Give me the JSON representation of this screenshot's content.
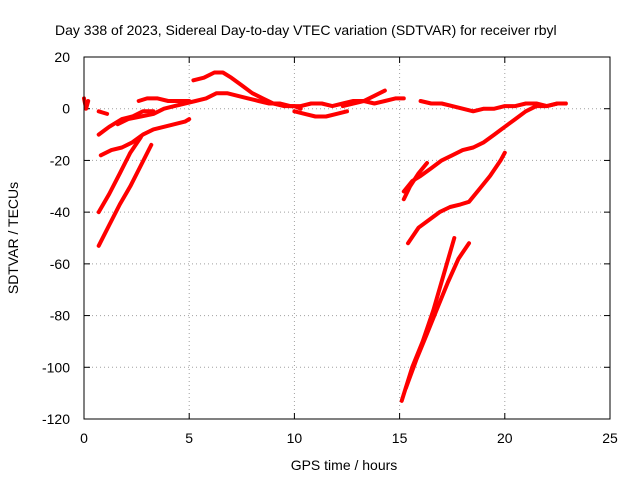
{
  "chart_data": {
    "type": "line",
    "title": "Day 338 of 2023, Sidereal Day-to-day VTEC variation (SDTVAR) for receiver rbyl",
    "xlabel": "GPS time / hours",
    "ylabel": "SDTVAR / TECUs",
    "xlim": [
      0,
      25
    ],
    "ylim": [
      -120,
      20
    ],
    "xticks": [
      0,
      5,
      10,
      15,
      20,
      25
    ],
    "yticks": [
      -120,
      -100,
      -80,
      -60,
      -40,
      -20,
      0,
      20
    ],
    "grid": true,
    "series_color": "#ff0000",
    "series": [
      {
        "x": [
          0.0,
          0.1,
          0.2
        ],
        "y": [
          4,
          0,
          3
        ]
      },
      {
        "x": [
          0.7,
          0.9,
          1.1
        ],
        "y": [
          -1,
          -1.5,
          -2
        ]
      },
      {
        "x": [
          0.7,
          1.2,
          1.8,
          2.3,
          2.8,
          3.3
        ],
        "y": [
          -10,
          -7,
          -4,
          -3,
          -1,
          -1
        ]
      },
      {
        "x": [
          1.6,
          2.1,
          2.7,
          3.3,
          3.8,
          4.3,
          4.8,
          5.3,
          5.8,
          6.3,
          6.8,
          7.3,
          7.8,
          8.3,
          8.8,
          9.3,
          9.8,
          10.3,
          10.8,
          11.3,
          11.8,
          12.3,
          12.8,
          13.3,
          13.8,
          14.3,
          14.8,
          15.2
        ],
        "y": [
          -6,
          -4,
          -3,
          -2,
          0,
          1,
          2,
          3,
          4,
          6,
          6,
          5,
          4,
          3,
          2,
          2,
          1,
          1,
          2,
          2,
          1,
          2,
          3,
          3,
          2,
          3,
          4,
          4
        ]
      },
      {
        "x": [
          0.8,
          1.3,
          1.8,
          2.3,
          2.8,
          3.3,
          3.8,
          4.3,
          4.8,
          5.0
        ],
        "y": [
          -18,
          -16,
          -15,
          -13,
          -10,
          -8,
          -7,
          -6,
          -5,
          -4
        ]
      },
      {
        "x": [
          2.6,
          3.0,
          3.5,
          4.0,
          4.5,
          5.0
        ],
        "y": [
          3,
          4,
          4,
          3,
          3,
          3
        ]
      },
      {
        "x": [
          0.7,
          1.2,
          1.7,
          2.2,
          2.7
        ],
        "y": [
          -40,
          -33,
          -25,
          -17,
          -11
        ]
      },
      {
        "x": [
          0.7,
          1.2,
          1.7,
          2.2,
          2.7,
          3.2
        ],
        "y": [
          -53,
          -45,
          -37,
          -30,
          -22,
          -14
        ]
      },
      {
        "x": [
          5.2,
          5.7,
          6.2,
          6.6,
          7.0,
          7.5,
          8.0,
          8.5,
          9.0,
          9.5,
          10.0,
          10.3
        ],
        "y": [
          11,
          12,
          14,
          14,
          12,
          9,
          6,
          4,
          2,
          1,
          1,
          0
        ]
      },
      {
        "x": [
          10.0,
          10.5,
          11.0,
          11.5,
          12.0,
          12.5
        ],
        "y": [
          -1,
          -2,
          -3,
          -3,
          -2,
          -1
        ]
      },
      {
        "x": [
          12.3,
          12.8,
          13.3,
          13.8,
          14.3
        ],
        "y": [
          1,
          2,
          3,
          5,
          7
        ]
      },
      {
        "x": [
          15.2,
          15.6,
          16.0,
          16.5,
          17.0,
          17.5,
          18.0,
          18.5,
          19.0,
          19.5,
          20.0,
          20.5,
          21.0,
          21.5,
          22.0,
          22.5,
          22.9
        ],
        "y": [
          -32,
          -28,
          -26,
          -23,
          -20,
          -18,
          -16,
          -15,
          -13,
          -10,
          -7,
          -4,
          -1,
          1,
          1,
          2,
          2
        ]
      },
      {
        "x": [
          15.2,
          15.5,
          15.9,
          16.3
        ],
        "y": [
          -35,
          -30,
          -25,
          -21
        ]
      },
      {
        "x": [
          16.0,
          16.5,
          17.0,
          17.5,
          18.0,
          18.5,
          19.0,
          19.5,
          20.0,
          20.5,
          21.0,
          21.5,
          22.0,
          22.5,
          22.9
        ],
        "y": [
          3,
          2,
          2,
          1,
          0,
          -1,
          0,
          0,
          1,
          1,
          2,
          2,
          1,
          2,
          2
        ]
      },
      {
        "x": [
          15.4,
          15.9,
          16.4,
          16.9,
          17.4,
          17.9,
          18.3,
          18.8,
          19.3,
          19.8,
          20.0
        ],
        "y": [
          -52,
          -46,
          -43,
          -40,
          -38,
          -37,
          -36,
          -31,
          -26,
          -20,
          -17
        ]
      },
      {
        "x": [
          15.1,
          15.6,
          16.1,
          16.6,
          17.1,
          17.6
        ],
        "y": [
          -113,
          -100,
          -90,
          -78,
          -64,
          -50
        ]
      },
      {
        "x": [
          15.3,
          15.8,
          16.3,
          16.8,
          17.3,
          17.8,
          18.3
        ],
        "y": [
          -108,
          -97,
          -87,
          -77,
          -67,
          -58,
          -52
        ]
      }
    ]
  }
}
